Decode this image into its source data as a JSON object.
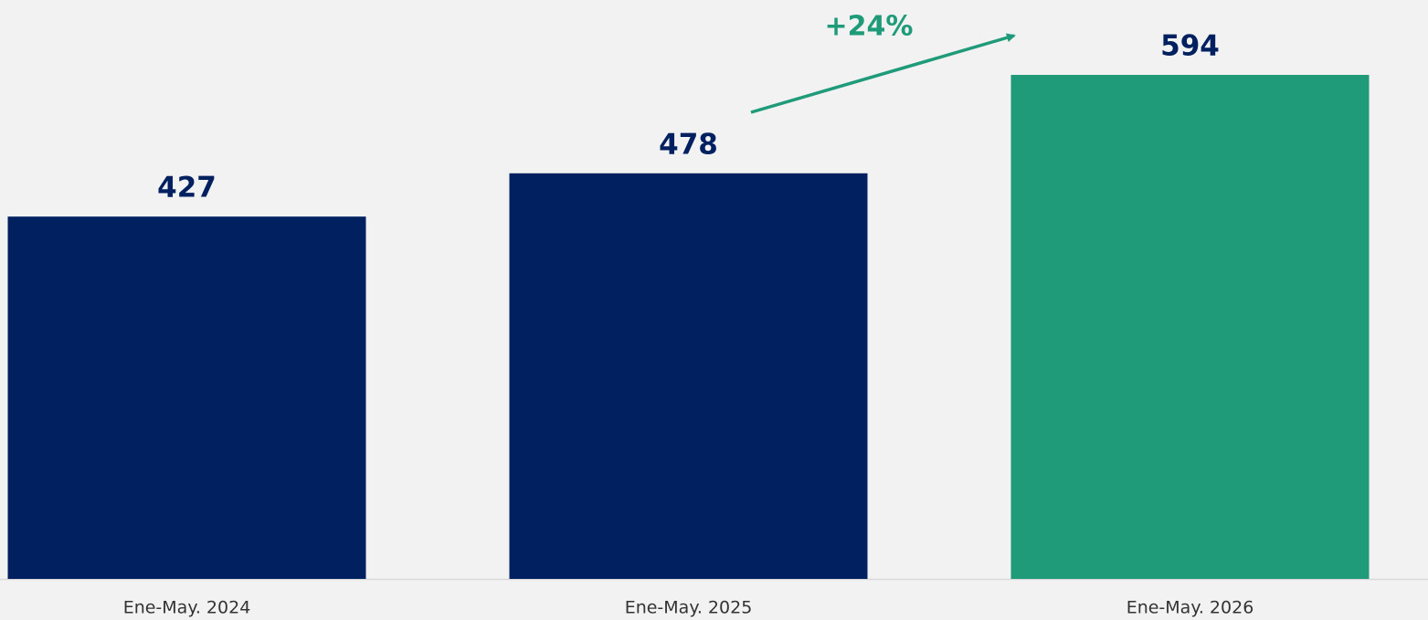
{
  "chart_data": {
    "type": "bar",
    "categories": [
      "Ene-May. 2024",
      "Ene-May. 2025",
      "Ene-May. 2026"
    ],
    "values": [
      427,
      478,
      594
    ],
    "colors": [
      "#002060",
      "#002060",
      "#1f9b7a"
    ],
    "annotations": [
      {
        "text": "+24%",
        "color": "#1f9b7a"
      }
    ]
  }
}
